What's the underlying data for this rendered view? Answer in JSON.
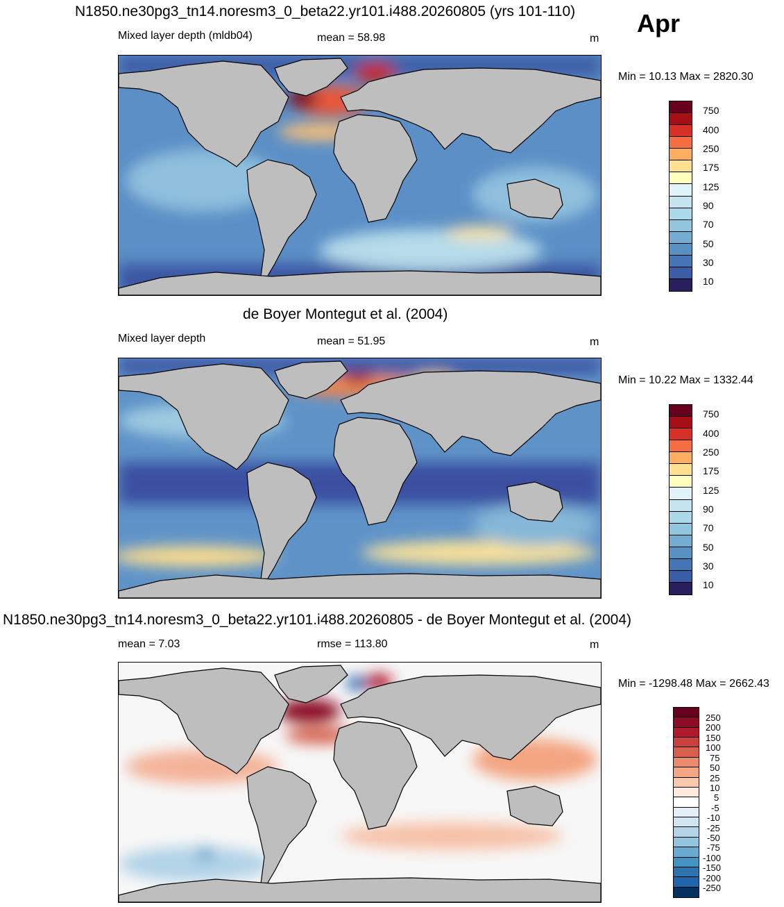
{
  "month": "Apr",
  "units": "m",
  "panels": [
    {
      "title": "N1850.ne30pg3_tn14.noresm3_0_beta22.yr101.i488.20260805 (yrs 101-110)",
      "left_label": "Mixed layer depth (mldb04)",
      "center_label": "mean =  58.98",
      "units": "m",
      "minmax": "Min =  10.13 Max = 2820.30",
      "colorbar": {
        "labels": [
          "750",
          "400",
          "250",
          "175",
          "125",
          "90",
          "70",
          "50",
          "30",
          "10"
        ],
        "colors": [
          "#67001f",
          "#a50f15",
          "#d73027",
          "#f46d43",
          "#fdae61",
          "#fee090",
          "#ffffbf",
          "#e0f3f8",
          "#c6e4ef",
          "#abd9e9",
          "#92c5de",
          "#74add1",
          "#5a91c3",
          "#4575b4",
          "#3a5da5",
          "#2d3d8a",
          "#2a1f5e"
        ]
      }
    },
    {
      "title": "de Boyer Montegut et al. (2004)",
      "left_label": "Mixed layer depth",
      "center_label": "mean =  51.95",
      "units": "m",
      "minmax": "Min =  10.22 Max = 1332.44",
      "colorbar": {
        "labels": [
          "750",
          "400",
          "250",
          "175",
          "125",
          "90",
          "70",
          "50",
          "30",
          "10"
        ],
        "colors": [
          "#67001f",
          "#a50f15",
          "#d73027",
          "#f46d43",
          "#fdae61",
          "#fee090",
          "#ffffbf",
          "#e0f3f8",
          "#c6e4ef",
          "#abd9e9",
          "#92c5de",
          "#74add1",
          "#5a91c3",
          "#4575b4",
          "#3a5da5",
          "#2d3d8a",
          "#2a1f5e"
        ]
      }
    },
    {
      "title": "N1850.ne30pg3_tn14.noresm3_0_beta22.yr101.i488.20260805 - de Boyer Montegut et al. (2004)",
      "left_label": "mean =   7.03",
      "center_label": "rmse = 113.80",
      "units": "m",
      "minmax": "Min = -1298.48 Max = 2662.43",
      "colorbar": {
        "labels": [
          "250",
          "200",
          "150",
          "100",
          "75",
          "50",
          "25",
          "10",
          "5",
          "-5",
          "-10",
          "-25",
          "-50",
          "-75",
          "-100",
          "-150",
          "-200",
          "-250"
        ],
        "colors": [
          "#67001f",
          "#8c0d25",
          "#b2182b",
          "#c9403f",
          "#d6604d",
          "#e98b6e",
          "#f4a582",
          "#f9c8ad",
          "#fde0ef",
          "#ffffff",
          "#e4eef6",
          "#d1e5f0",
          "#b2d3e8",
          "#92c5de",
          "#6aa9d0",
          "#4393c3",
          "#2f72b0",
          "#2166ac",
          "#053061"
        ]
      }
    }
  ]
}
